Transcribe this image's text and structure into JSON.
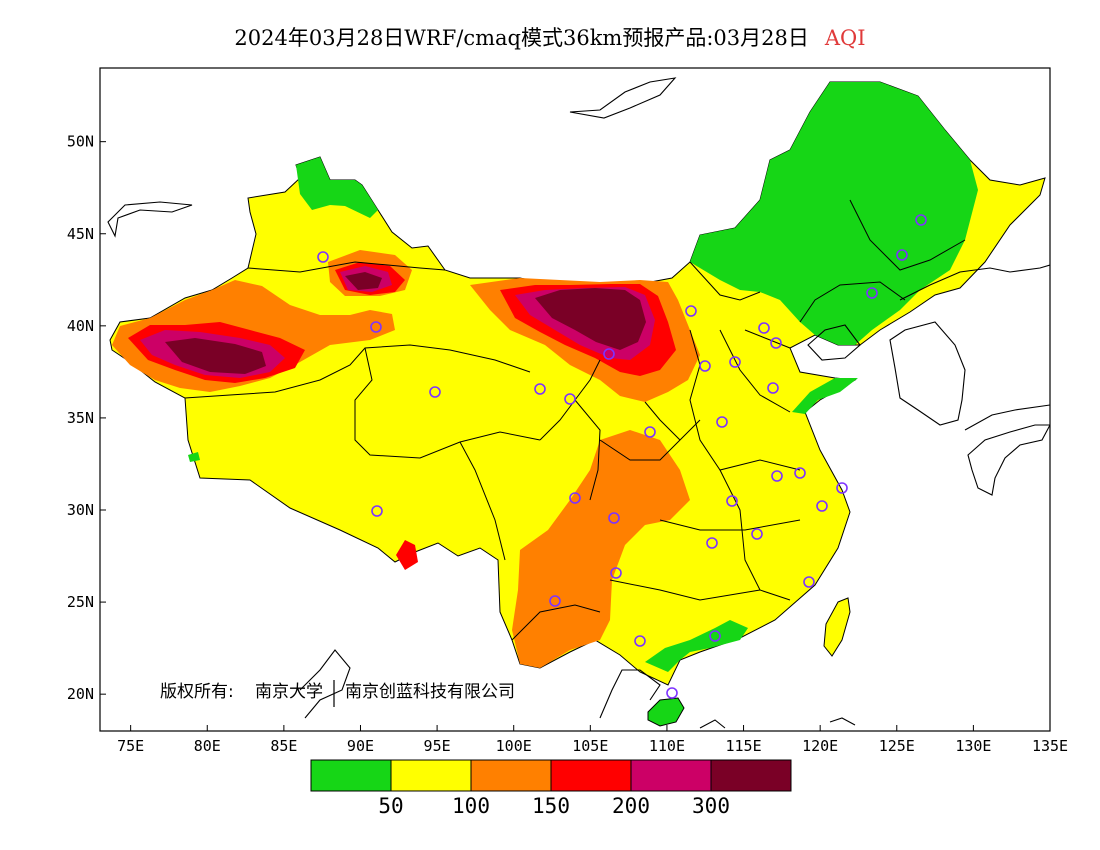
{
  "title": {
    "text": "2024年03月28日WRF/cmaq模式36km预报产品:03月28日",
    "pollutant": "AQI",
    "pollutant_color": "#e03a3a"
  },
  "map": {
    "lon_range": [
      73,
      135
    ],
    "lat_range": [
      18,
      54
    ],
    "x_ticks": [
      "75E",
      "80E",
      "85E",
      "90E",
      "95E",
      "100E",
      "105E",
      "110E",
      "115E",
      "120E",
      "125E",
      "130E",
      "135E"
    ],
    "y_ticks": [
      "20N",
      "25N",
      "30N",
      "35N",
      "40N",
      "45N",
      "50N"
    ],
    "copyright_prefix": "版权所有:",
    "copyright_org1": "南京大学",
    "copyright_org2": "南京创蓝科技有限公司"
  },
  "legend": {
    "colors": [
      "#16d616",
      "#ffff00",
      "#ff8000",
      "#ff0000",
      "#cc0066",
      "#7a0026"
    ],
    "labels": [
      "50",
      "100",
      "150",
      "200",
      "300"
    ]
  },
  "colors": {
    "good": "#16d616",
    "moderate": "#ffff00",
    "sensitive": "#ff8000",
    "unhealthy": "#ff0000",
    "very_unhealthy": "#cc0066",
    "hazardous": "#7a0026",
    "station_marker": "#7d33ff"
  }
}
